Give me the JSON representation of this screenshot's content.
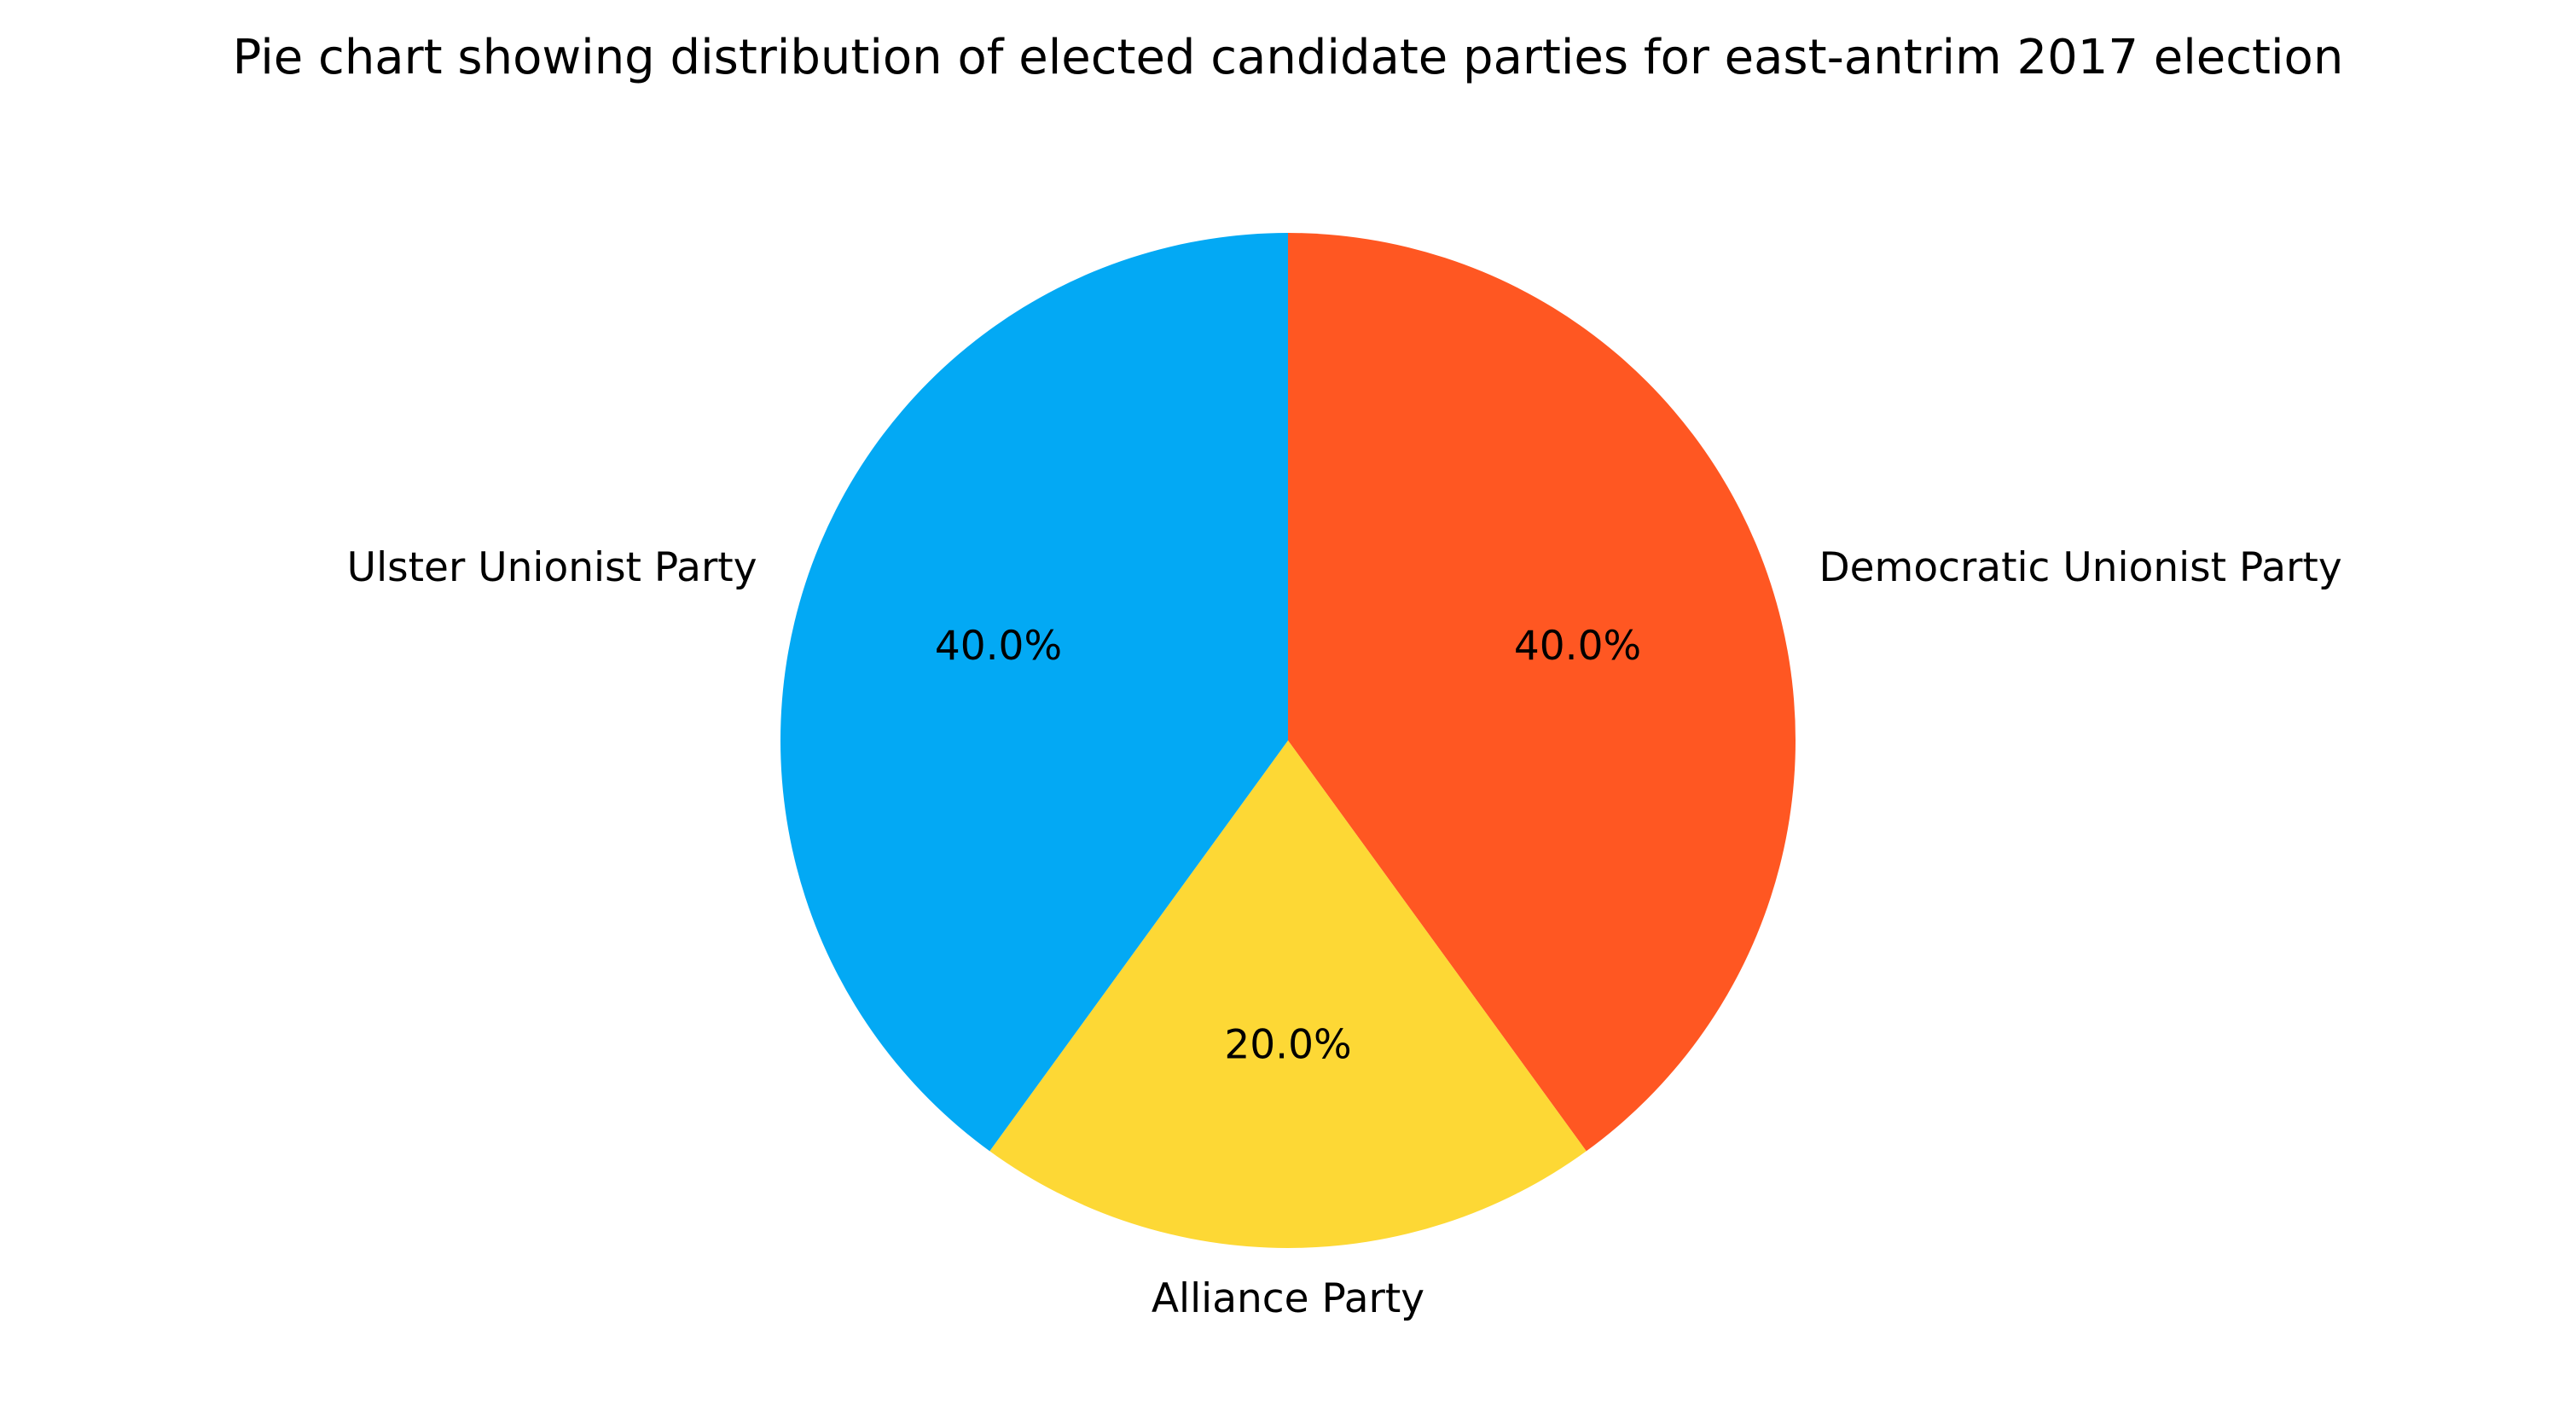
{
  "chart_data": {
    "type": "pie",
    "title": "Pie chart showing distribution of elected candidate parties for east-antrim 2017 election",
    "slices": [
      {
        "label": "Democratic Unionist Party",
        "value": 40.0,
        "pct_label": "40.0%",
        "color": "#FF5722"
      },
      {
        "label": "Alliance Party",
        "value": 20.0,
        "pct_label": "20.0%",
        "color": "#FDD835"
      },
      {
        "label": "Ulster Unionist Party",
        "value": 40.0,
        "pct_label": "40.0%",
        "color": "#03A9F4"
      }
    ],
    "start_angle_deg": 90,
    "direction": "clockwise",
    "legend": "none"
  }
}
